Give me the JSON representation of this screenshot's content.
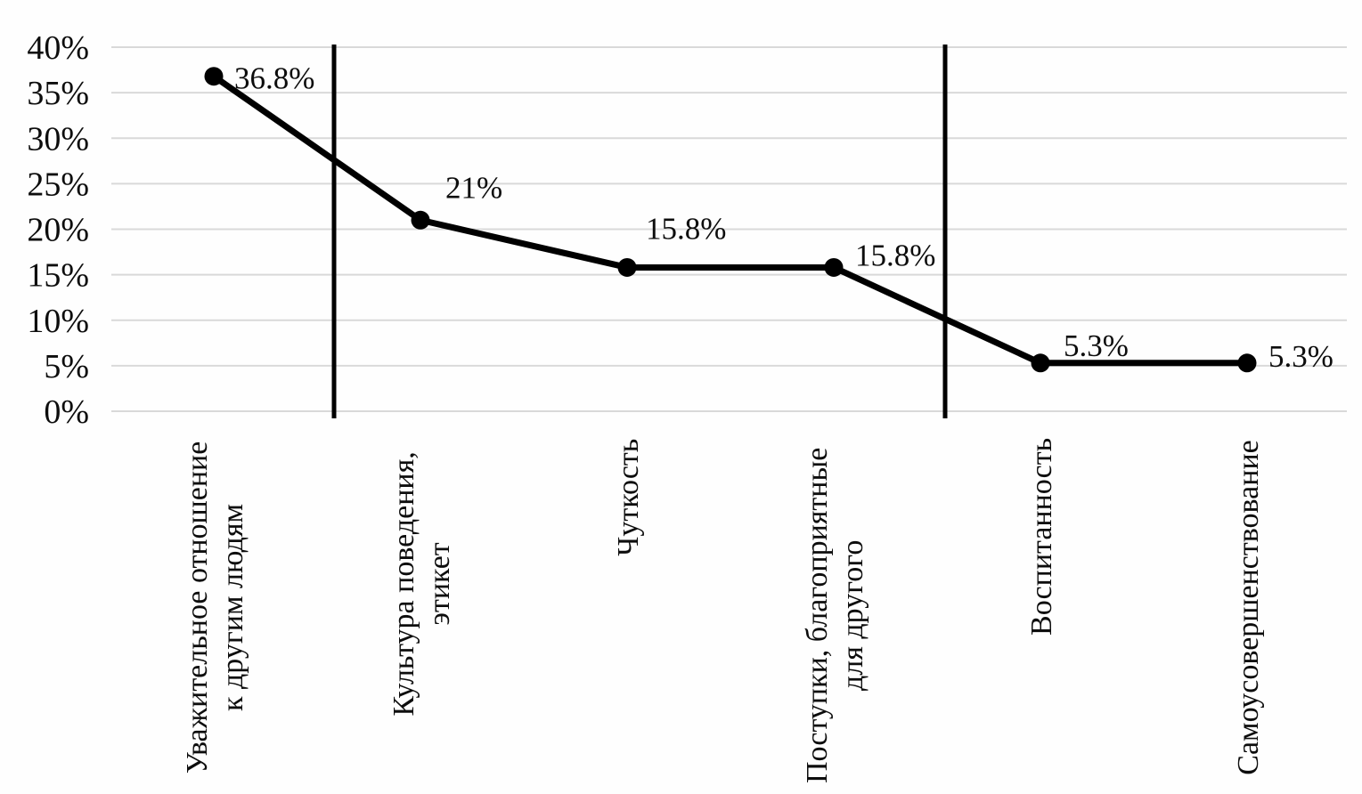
{
  "chart_data": {
    "type": "line",
    "title": "",
    "categories": [
      [
        "Уважительное отношение",
        "к другим людям"
      ],
      [
        "Культура поведения,",
        "этикет"
      ],
      [
        "Чуткость"
      ],
      [
        "Поступки, благоприятные",
        "для другого"
      ],
      [
        "Воспитанность"
      ],
      [
        "Самоусовершенствование"
      ]
    ],
    "values": [
      36.8,
      21,
      15.8,
      15.8,
      5.3,
      5.3
    ],
    "point_labels": [
      "36.8%",
      "21%",
      "15.8%",
      "15.8%",
      "5.3%",
      "5.3%"
    ],
    "y_tick_labels": [
      "0%",
      "5%",
      "10%",
      "15%",
      "20%",
      "25%",
      "30%",
      "35%",
      "40%"
    ],
    "ylim": [
      0,
      40
    ],
    "y_tick_step": 5,
    "grid": "horizontal-only",
    "legend": "none",
    "group_dividers_after_category_index": [
      0,
      3
    ],
    "series_color": "#000000",
    "marker_color": "#000000",
    "divider_color": "#000000",
    "gridline_color": "#d9d9d9",
    "text_color": "#0d0d0d",
    "background_color": "#fefefe"
  }
}
